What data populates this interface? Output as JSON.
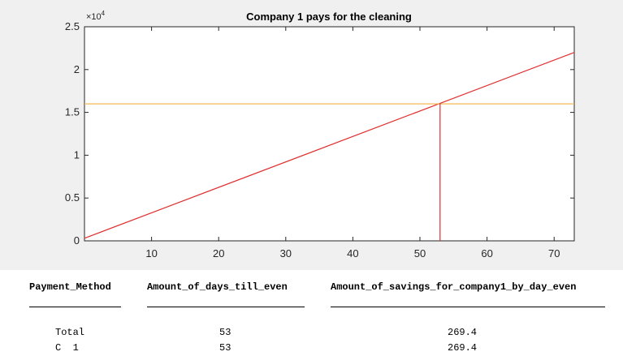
{
  "chart_data": {
    "type": "line",
    "title": "Company 1 pays for the cleaning",
    "y_exponent_label": "×10",
    "y_exponent_power": "4",
    "xlim": [
      0,
      73
    ],
    "ylim": [
      0,
      25000
    ],
    "x_ticks": [
      10,
      20,
      30,
      40,
      50,
      60,
      70
    ],
    "y_ticks": [
      0,
      5000,
      10000,
      15000,
      20000,
      25000
    ],
    "y_tick_labels": [
      "0",
      "0.5",
      "1",
      "1.5",
      "2",
      "2.5"
    ],
    "grid": false,
    "series": [
      {
        "color": "#e03030",
        "kind": "line",
        "x": [
          0,
          73
        ],
        "y": [
          301.4,
          22000
        ]
      },
      {
        "color": "#f0b040",
        "kind": "line",
        "x": [
          0,
          73
        ],
        "y": [
          16000,
          16000
        ]
      },
      {
        "color": "#e03030",
        "kind": "vertical",
        "x": [
          53,
          53
        ],
        "y": [
          0,
          16100
        ]
      }
    ]
  },
  "table": {
    "columns": [
      "Payment_Method",
      "Amount_of_days_till_even",
      "Amount_of_savings_for_company1_by_day_even"
    ],
    "rows": [
      [
        "Total",
        "53",
        "269.4"
      ],
      [
        "C  1",
        "53",
        "269.4"
      ]
    ]
  }
}
